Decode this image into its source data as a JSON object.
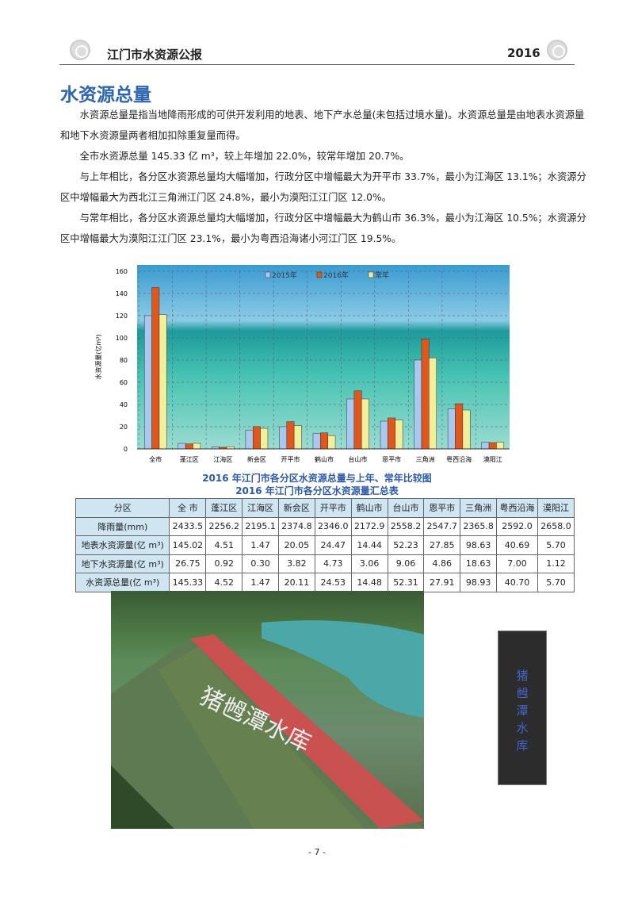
{
  "header": {
    "title": "江门市水资源公报",
    "year": "2016"
  },
  "section_title": "水资源总量",
  "paragraphs": [
    "水资源总量是指当地降雨形成的可供开发利用的地表、地下产水总量(未包括过境水量)。水资源总量是由地表水资源量和地下水资源量两者相加扣除重复量而得。",
    "全市水资源总量 145.33 亿 m³，较上年增加 22.0%，较常年增加 20.7%。",
    "与上年相比，各分区水资源总量均大幅增加，行政分区中增幅最大为开平市 33.7%，最小为江海区 13.1%；水资源分区中增幅最大为西北江三角洲江门区 24.8%，最小为漠阳江江门区 12.0%。",
    "与常年相比，各分区水资源总量均大幅增加，行政分区中增幅最大为鹤山市 36.3%，最小为江海区 10.5%；水资源分区中增幅最大为漠阳江江门区 23.1%，最小为粤西沿海诸小河江门区 19.5%。"
  ],
  "chart_data": {
    "type": "bar",
    "title": "2016 年江门市各分区水资源总量与上年、常年比较图",
    "ylabel": "水资源量(亿m³)",
    "ylim": [
      0,
      160
    ],
    "yticks": [
      0,
      20,
      40,
      60,
      80,
      100,
      120,
      140,
      160
    ],
    "grid": true,
    "legend": "top-center",
    "categories": [
      "全市",
      "蓬江区",
      "江海区",
      "新会区",
      "开平市",
      "鹤山市",
      "台山市",
      "恩平市",
      "三角洲",
      "粤西沿海",
      "漠阳江"
    ],
    "series": [
      {
        "name": "2015年",
        "color": "#a9c8f0",
        "values": [
          120,
          5,
          2,
          17,
          20,
          14,
          45,
          25,
          80,
          36,
          6
        ]
      },
      {
        "name": "2016年",
        "color": "#e0561c",
        "values": [
          145.33,
          4.52,
          1.47,
          20.11,
          24.53,
          14.48,
          52.31,
          27.91,
          98.93,
          40.7,
          5.7
        ]
      },
      {
        "name": "常年",
        "color": "#f3ee9a",
        "values": [
          121,
          5,
          2,
          18.5,
          21,
          12,
          45,
          26,
          82,
          35,
          6
        ]
      }
    ]
  },
  "table": {
    "title": "2016 年江门市各分区水资源量汇总表",
    "header": [
      "分区",
      "全 市",
      "蓬江区",
      "江海区",
      "新会区",
      "开平市",
      "鹤山市",
      "台山市",
      "恩平市",
      "三角洲",
      "粤西沿海",
      "漠阳江"
    ],
    "rows": [
      [
        "降雨量(mm)",
        "2433.5",
        "2256.2",
        "2195.1",
        "2374.8",
        "2346.0",
        "2172.9",
        "2558.2",
        "2547.7",
        "2365.8",
        "2592.0",
        "2658.0"
      ],
      [
        "地表水资源量(亿 m³)",
        "145.02",
        "4.51",
        "1.47",
        "20.05",
        "24.47",
        "14.44",
        "52.23",
        "27.85",
        "98.63",
        "40.69",
        "5.70"
      ],
      [
        "地下水资源量(亿 m³)",
        "26.75",
        "0.92",
        "0.30",
        "3.82",
        "4.73",
        "3.06",
        "9.06",
        "4.86",
        "18.63",
        "7.00",
        "1.12"
      ],
      [
        "水资源总量(亿 m³)",
        "145.33",
        "4.52",
        "1.47",
        "20.11",
        "24.53",
        "14.48",
        "52.31",
        "27.91",
        "98.93",
        "40.70",
        "5.70"
      ]
    ]
  },
  "photo_caption": [
    "猪",
    "乸",
    "潭",
    "水",
    "库"
  ],
  "photo_text": "猪乸潭水库",
  "page_number": "- 7 -"
}
